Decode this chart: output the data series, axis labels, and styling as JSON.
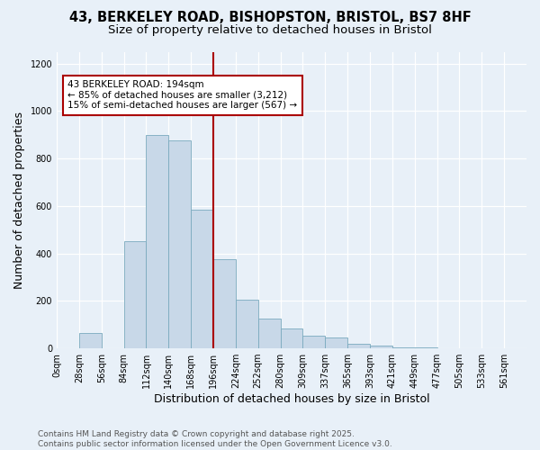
{
  "title_line1": "43, BERKELEY ROAD, BISHOPSTON, BRISTOL, BS7 8HF",
  "title_line2": "Size of property relative to detached houses in Bristol",
  "xlabel": "Distribution of detached houses by size in Bristol",
  "ylabel": "Number of detached properties",
  "annotation_line1": "43 BERKELEY ROAD: 194sqm",
  "annotation_line2": "← 85% of detached houses are smaller (3,212)",
  "annotation_line3": "15% of semi-detached houses are larger (567) →",
  "footer_line1": "Contains HM Land Registry data © Crown copyright and database right 2025.",
  "footer_line2": "Contains public sector information licensed under the Open Government Licence v3.0.",
  "bin_labels": [
    "0sqm",
    "28sqm",
    "56sqm",
    "84sqm",
    "112sqm",
    "140sqm",
    "168sqm",
    "196sqm",
    "224sqm",
    "252sqm",
    "280sqm",
    "309sqm",
    "337sqm",
    "365sqm",
    "393sqm",
    "421sqm",
    "449sqm",
    "477sqm",
    "505sqm",
    "533sqm",
    "561sqm"
  ],
  "bar_values": [
    2,
    65,
    2,
    450,
    900,
    875,
    585,
    375,
    205,
    125,
    85,
    55,
    45,
    20,
    12,
    5,
    3,
    1,
    0,
    1,
    0
  ],
  "bar_color": "#c8d8e8",
  "bar_edge_color": "#7aaabe",
  "red_line_x": 7,
  "red_line_color": "#aa0000",
  "annotation_box_facecolor": "#ffffff",
  "annotation_box_edgecolor": "#aa0000",
  "background_color": "#e8f0f8",
  "plot_bg_color": "#e8f0f8",
  "ylim": [
    0,
    1250
  ],
  "yticks": [
    0,
    200,
    400,
    600,
    800,
    1000,
    1200
  ],
  "grid_color": "#ffffff",
  "title_fontsize": 10.5,
  "subtitle_fontsize": 9.5,
  "axis_label_fontsize": 9,
  "tick_fontsize": 7,
  "annotation_fontsize": 7.5,
  "footer_fontsize": 6.5
}
